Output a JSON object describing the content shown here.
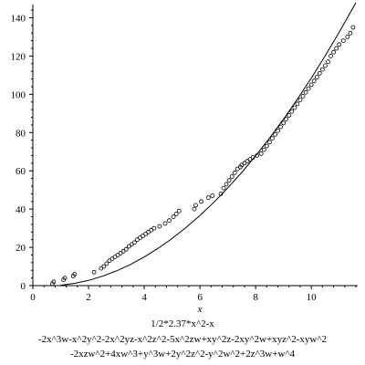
{
  "chart_data": {
    "type": "scatter",
    "title": "",
    "xlabel": "x",
    "ylabel": "",
    "xlim": [
      0,
      11.6
    ],
    "ylim": [
      0,
      145
    ],
    "xticks": [
      0,
      2,
      4,
      6,
      8,
      10
    ],
    "yticks": [
      0,
      20,
      40,
      60,
      80,
      100,
      120,
      140
    ],
    "grid": false,
    "legend": "none",
    "series": [
      {
        "kind": "points",
        "marker": "circle",
        "x": [
          0.7,
          0.75,
          1.1,
          1.15,
          1.45,
          1.5,
          2.2,
          2.45,
          2.55,
          2.65,
          2.75,
          2.85,
          2.95,
          3.05,
          3.15,
          3.25,
          3.35,
          3.45,
          3.55,
          3.65,
          3.75,
          3.85,
          3.95,
          4.05,
          4.15,
          4.25,
          4.35,
          4.55,
          4.75,
          4.9,
          5.05,
          5.15,
          5.25,
          5.8,
          5.85,
          6.05,
          6.3,
          6.45,
          6.75,
          6.85,
          6.95,
          7.05,
          7.15,
          7.25,
          7.35,
          7.45,
          7.5,
          7.6,
          7.7,
          7.8,
          7.9,
          8.05,
          8.2,
          8.3,
          8.4,
          8.5,
          8.6,
          8.7,
          8.8,
          8.9,
          9.0,
          9.1,
          9.2,
          9.3,
          9.4,
          9.5,
          9.6,
          9.7,
          9.8,
          9.9,
          10.0,
          10.1,
          10.2,
          10.3,
          10.4,
          10.5,
          10.6,
          10.7,
          10.8,
          10.9,
          11.0,
          11.15,
          11.3,
          11.4,
          11.5
        ],
        "y": [
          1,
          2,
          3,
          4,
          5,
          6,
          7,
          9,
          10,
          11.5,
          13,
          14,
          15,
          16,
          17,
          18,
          19,
          20.5,
          21.5,
          22.5,
          24,
          25,
          26,
          27,
          28,
          29,
          30,
          31,
          32.5,
          34,
          36,
          37.5,
          39,
          40,
          42,
          44,
          46,
          47,
          48,
          51,
          53,
          55,
          57,
          59,
          61,
          62,
          63,
          64,
          65,
          66,
          67,
          68,
          69,
          71,
          73,
          75,
          77,
          79,
          81,
          83,
          85,
          87,
          89,
          91,
          93,
          95,
          97,
          99,
          101,
          103,
          105,
          107,
          109,
          111,
          113,
          115,
          117,
          120,
          122,
          124,
          126,
          128,
          130,
          132,
          135
        ]
      },
      {
        "kind": "curve",
        "expression": "1.185*x^2 - x",
        "x": [
          1.0,
          1.5,
          2.0,
          2.5,
          3.0,
          3.5,
          4.0,
          4.5,
          5.0,
          5.5,
          6.0,
          6.5,
          7.0,
          7.5,
          8.0,
          8.5,
          9.0,
          9.5,
          10.0,
          10.5,
          11.0,
          11.6
        ],
        "y": [
          0.19,
          1.17,
          2.74,
          4.91,
          7.67,
          11.02,
          14.96,
          19.5,
          24.63,
          30.35,
          36.66,
          43.57,
          51.07,
          59.16,
          67.84,
          77.12,
          86.99,
          97.45,
          108.5,
          120.15,
          132.39,
          147.85
        ]
      }
    ]
  },
  "caption": {
    "line1": "1/2*2.37*x^2-x",
    "line2": "-2x^3w-x^2y^2-2x^2yz-x^2z^2-5x^2zw+xy^2z-2xy^2w+xyz^2-xyw^2",
    "line3": "-2xzw^2+4xw^3+y^3w+2y^2z^2-y^2w^2+2z^3w+w^4"
  }
}
